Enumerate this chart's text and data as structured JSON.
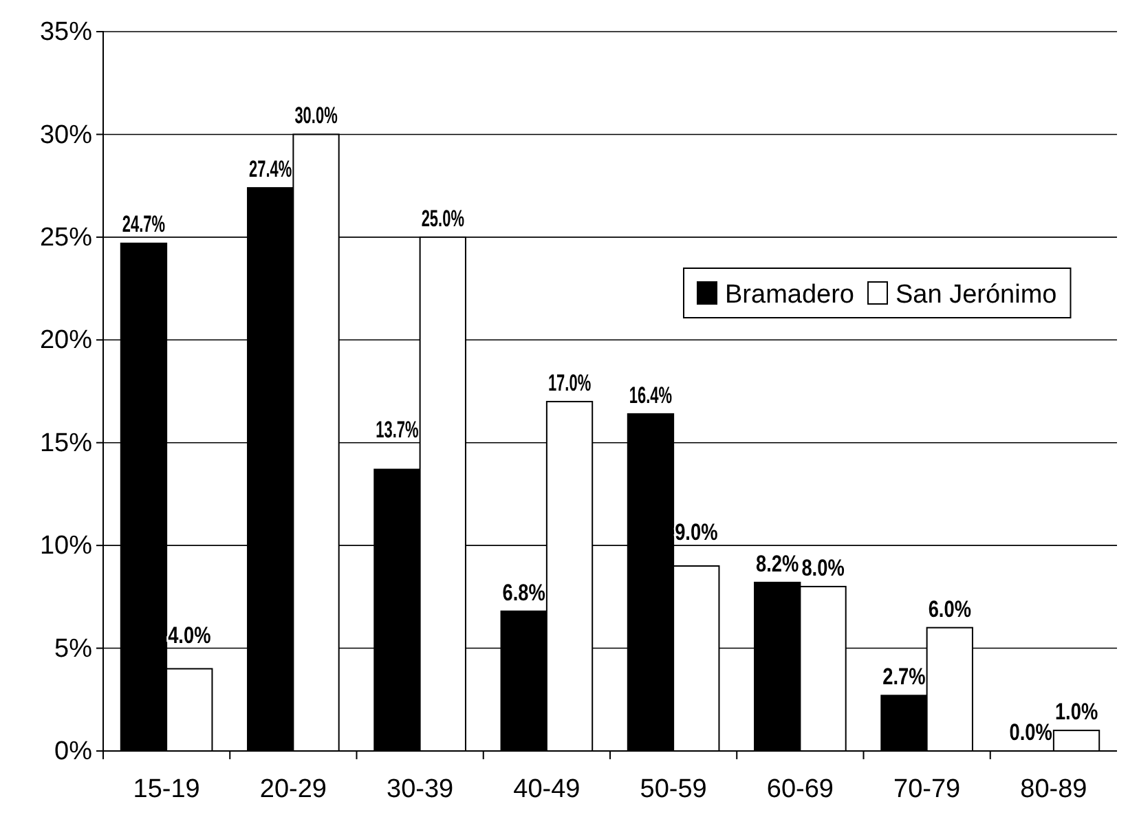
{
  "chart_data": {
    "type": "bar",
    "categories": [
      "15-19",
      "20-29",
      "30-39",
      "40-49",
      "50-59",
      "60-69",
      "70-79",
      "80-89"
    ],
    "series": [
      {
        "name": "Bramadero",
        "color": "#000000",
        "values": [
          24.7,
          27.4,
          13.7,
          6.8,
          16.4,
          8.2,
          2.7,
          0.0
        ],
        "value_labels": [
          "24.7%",
          "27.4%",
          "13.7%",
          "6.8%",
          "16.4%",
          "8.2%",
          "2.7%",
          "0.0%"
        ]
      },
      {
        "name": "San Jerónimo",
        "color": "#ffffff",
        "values": [
          4.0,
          30.0,
          25.0,
          17.0,
          9.0,
          8.0,
          6.0,
          1.0
        ],
        "value_labels": [
          "4.0%",
          "30.0%",
          "25.0%",
          "17.0%",
          "9.0%",
          "8.0%",
          "6.0%",
          "1.0%"
        ]
      }
    ],
    "ylim": [
      0,
      35
    ],
    "yticks": [
      {
        "value": 0,
        "label": "0%"
      },
      {
        "value": 5,
        "label": "5%"
      },
      {
        "value": 10,
        "label": "10%"
      },
      {
        "value": 15,
        "label": "15%"
      },
      {
        "value": 20,
        "label": "20%"
      },
      {
        "value": 25,
        "label": "25%"
      },
      {
        "value": 30,
        "label": "30%"
      },
      {
        "value": 35,
        "label": "35%"
      }
    ],
    "grid": "y",
    "legend": "right"
  }
}
